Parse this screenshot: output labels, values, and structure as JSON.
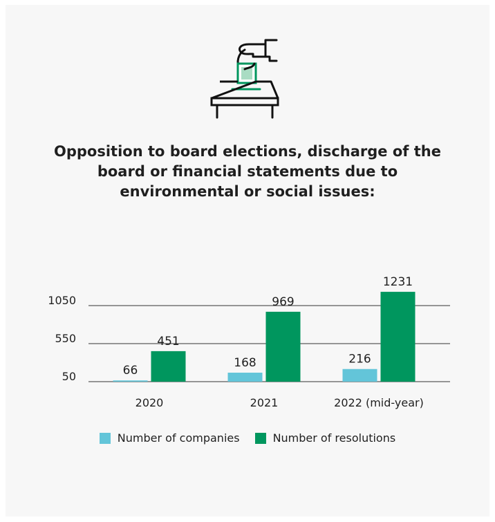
{
  "chart_data": {
    "type": "bar",
    "title": "Opposition to board elections, discharge of the board or financial statements due to environmental or social issues:",
    "categories": [
      "2020",
      "2021",
      "2022 (mid-year)"
    ],
    "series": [
      {
        "name": "Number of companies",
        "values": [
          66,
          168,
          216
        ],
        "color": "#63c5d9"
      },
      {
        "name": "Number of resolutions",
        "values": [
          451,
          969,
          1231
        ],
        "color": "#00965e"
      }
    ],
    "yticks": [
      50,
      550,
      1050
    ],
    "ylim": [
      50,
      1250
    ],
    "grid": true,
    "legend_position": "bottom-center"
  },
  "icon": {
    "name": "ballot-box-voting-icon",
    "accent": "#00965e"
  }
}
